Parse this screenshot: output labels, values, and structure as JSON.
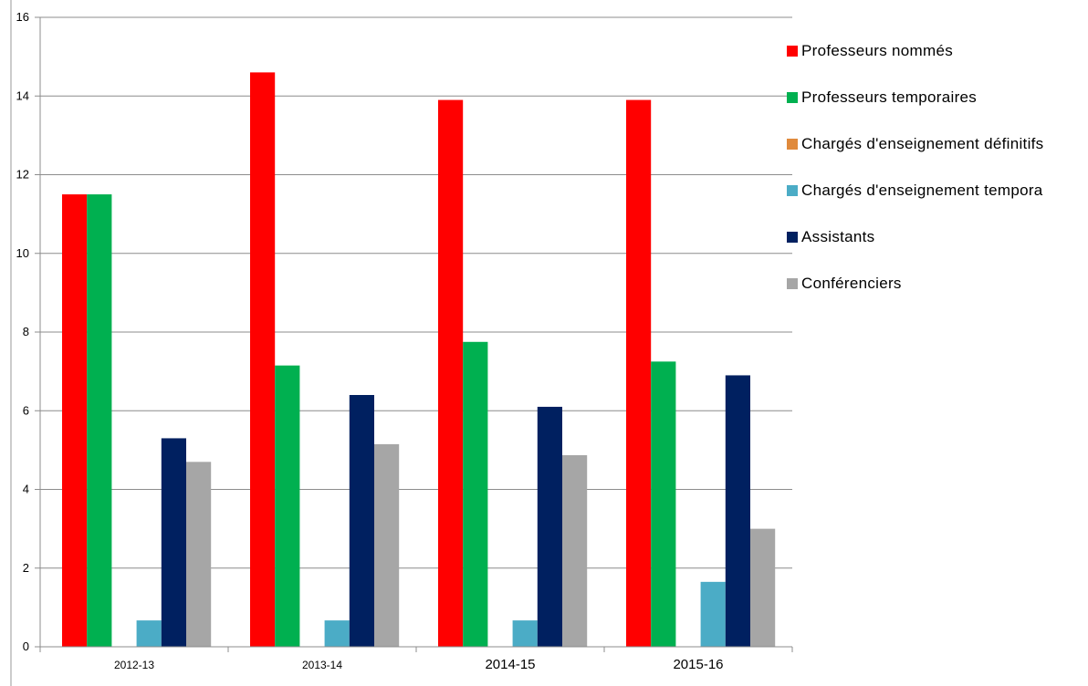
{
  "chart_data": {
    "type": "bar",
    "categories": [
      "2012-13",
      "2013-14",
      "2014-15",
      "2015-16"
    ],
    "series": [
      {
        "name": "Professeurs nommés",
        "color": "#ff0000",
        "values": [
          11.5,
          14.6,
          13.9,
          13.9
        ]
      },
      {
        "name": "Professeurs temporaires",
        "color": "#00b050",
        "values": [
          11.5,
          7.15,
          7.75,
          7.25
        ]
      },
      {
        "name": "Chargés d'enseignement définitifs",
        "color": "#e08a3c",
        "values": [
          0,
          0,
          0,
          0
        ]
      },
      {
        "name": "Chargés d'enseignement tempora",
        "color": "#4bacc6",
        "values": [
          0.67,
          0.67,
          0.67,
          1.65
        ]
      },
      {
        "name": "Assistants",
        "color": "#002060",
        "values": [
          5.3,
          6.4,
          6.1,
          6.9
        ]
      },
      {
        "name": "Conférenciers",
        "color": "#a6a6a6",
        "values": [
          4.7,
          5.15,
          4.87,
          3.0
        ]
      }
    ],
    "yticks": [
      "0",
      "2",
      "4",
      "6",
      "8",
      "10",
      "12",
      "14",
      "16"
    ],
    "ylim": [
      0,
      16
    ],
    "grid": true,
    "legend": "right"
  }
}
